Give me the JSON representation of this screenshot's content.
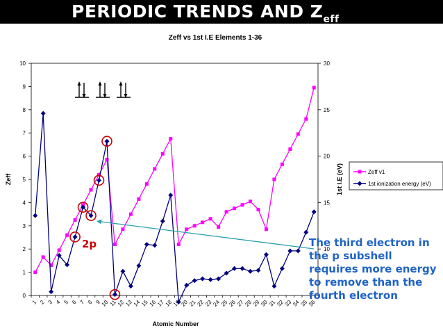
{
  "slide": {
    "title_main": "PERIODIC TRENDS AND Z",
    "title_sub": "eff",
    "label_2p": "2p",
    "callout": "The third electron in the p subshell requires more energy to remove than the fourth electron",
    "colors": {
      "title_bg": "#000000",
      "title_text": "#ffffff",
      "callout": "#1f63c6",
      "circle": "#cc0000",
      "arrow": "#2aa0b0",
      "label_2p": "#cc0000"
    },
    "orbital_boxes": [
      {
        "arrows": "up-down"
      },
      {
        "arrows": "up-down"
      },
      {
        "arrows": "up-down"
      }
    ]
  },
  "chart_data": {
    "type": "line",
    "title": "Zeff vs 1st I.E Elements 1-36",
    "xlabel": "Atomic Number",
    "ylabel": "Zeff",
    "y2label": "1st I.E (eV)",
    "categories": [
      "1",
      "2",
      "3",
      "4",
      "5",
      "6",
      "7",
      "8",
      "9",
      "10",
      "11",
      "12",
      "13",
      "14",
      "15",
      "16",
      "17",
      "18",
      "19",
      "20",
      "21",
      "22",
      "23",
      "24",
      "25",
      "26",
      "27",
      "28",
      "29",
      "30",
      "31",
      "32",
      "33",
      "34",
      "35",
      "36"
    ],
    "ylim": [
      0,
      10
    ],
    "yticks": [
      "0",
      "1",
      "2",
      "3",
      "4",
      "5",
      "6",
      "7",
      "8",
      "9",
      "10"
    ],
    "y2lim": [
      5,
      30
    ],
    "y2ticks": [
      "10",
      "15",
      "20",
      "25",
      "30"
    ],
    "legend_position": "right",
    "series": [
      {
        "name": "Zeff v1",
        "axis": "left",
        "color": "#ff00ff",
        "marker": "square",
        "values": [
          1.0,
          1.65,
          1.3,
          1.95,
          2.6,
          3.25,
          3.9,
          4.55,
          5.2,
          5.85,
          2.2,
          2.85,
          3.5,
          4.15,
          4.8,
          5.45,
          6.1,
          6.75,
          2.2,
          2.85,
          3.0,
          3.15,
          3.3,
          2.95,
          3.6,
          3.75,
          3.9,
          4.05,
          3.7,
          2.85,
          5.0,
          5.65,
          6.3,
          6.95,
          7.6,
          8.95
        ]
      },
      {
        "name": "1st ionization energy (eV)",
        "axis": "right",
        "color": "#000080",
        "marker": "diamond",
        "values": [
          13.6,
          24.6,
          5.4,
          9.3,
          8.3,
          11.3,
          14.5,
          13.6,
          17.4,
          21.6,
          5.1,
          7.6,
          6.0,
          8.2,
          10.5,
          10.4,
          13.0,
          15.8,
          4.3,
          6.1,
          6.6,
          6.8,
          6.7,
          6.8,
          7.4,
          7.9,
          7.9,
          7.6,
          7.7,
          9.4,
          6.0,
          7.9,
          9.8,
          9.8,
          11.8,
          14.0
        ]
      }
    ],
    "highlighted_points": [
      {
        "series": "1st ionization energy (eV)",
        "x": "6"
      },
      {
        "series": "1st ionization energy (eV)",
        "x": "7"
      },
      {
        "series": "1st ionization energy (eV)",
        "x": "8"
      },
      {
        "series": "1st ionization energy (eV)",
        "x": "9"
      },
      {
        "series": "1st ionization energy (eV)",
        "x": "10"
      },
      {
        "series": "1st ionization energy (eV)",
        "x": "11"
      }
    ],
    "annotation_arrow": {
      "from": "callout",
      "to_series": "1st ionization energy (eV)",
      "to_x": "8"
    }
  }
}
